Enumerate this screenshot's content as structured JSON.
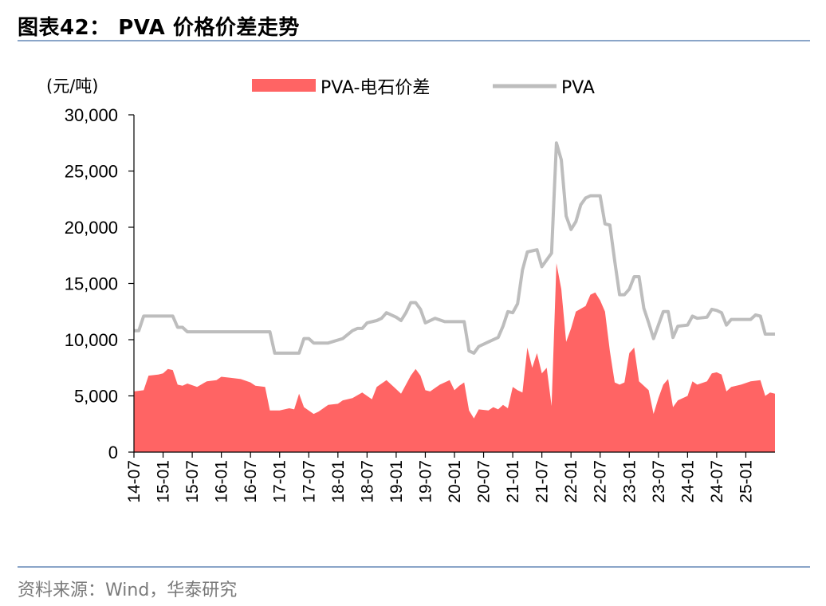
{
  "header": {
    "title": "图表42： PVA 价格价差走势"
  },
  "footer": {
    "source": "资料来源：Wind，华泰研究"
  },
  "colors": {
    "spread_fill": "#ff6464",
    "pva_line": "#bdbdbd",
    "rule": "#8aa5c8"
  },
  "chart_data": {
    "type": "line",
    "unit_label": "(元/吨)",
    "ylim": [
      0,
      30000
    ],
    "yticks": [
      0,
      5000,
      10000,
      15000,
      20000,
      25000,
      30000
    ],
    "ytick_labels": [
      "0",
      "5,000",
      "10,000",
      "15,000",
      "20,000",
      "25,000",
      "30,000"
    ],
    "xlim": [
      "2014-07",
      "2025-07"
    ],
    "xtick_labels": [
      "14-07",
      "15-01",
      "15-07",
      "16-01",
      "16-07",
      "17-01",
      "17-07",
      "18-01",
      "18-07",
      "19-01",
      "19-07",
      "20-01",
      "20-07",
      "21-01",
      "21-07",
      "22-01",
      "22-07",
      "23-01",
      "23-07",
      "24-01",
      "24-07",
      "25-01"
    ],
    "legend": {
      "position": "top"
    },
    "grid": false,
    "series": [
      {
        "name": "PVA-电石价差",
        "type": "area",
        "points": [
          [
            "2014-07",
            5400
          ],
          [
            "2014-09",
            5500
          ],
          [
            "2014-10",
            6800
          ],
          [
            "2014-12",
            6900
          ],
          [
            "2015-01",
            7000
          ],
          [
            "2015-02",
            7400
          ],
          [
            "2015-03",
            7300
          ],
          [
            "2015-04",
            6000
          ],
          [
            "2015-05",
            5900
          ],
          [
            "2015-06",
            6100
          ],
          [
            "2015-08",
            5800
          ],
          [
            "2015-10",
            6300
          ],
          [
            "2015-12",
            6400
          ],
          [
            "2016-01",
            6700
          ],
          [
            "2016-03",
            6600
          ],
          [
            "2016-05",
            6500
          ],
          [
            "2016-07",
            6200
          ],
          [
            "2016-08",
            5900
          ],
          [
            "2016-10",
            5800
          ],
          [
            "2016-11",
            3700
          ],
          [
            "2017-01",
            3700
          ],
          [
            "2017-03",
            3900
          ],
          [
            "2017-04",
            3800
          ],
          [
            "2017-05",
            5200
          ],
          [
            "2017-06",
            4000
          ],
          [
            "2017-08",
            3400
          ],
          [
            "2017-09",
            3600
          ],
          [
            "2017-11",
            4200
          ],
          [
            "2018-01",
            4300
          ],
          [
            "2018-02",
            4600
          ],
          [
            "2018-04",
            4800
          ],
          [
            "2018-06",
            5300
          ],
          [
            "2018-07",
            5000
          ],
          [
            "2018-08",
            4700
          ],
          [
            "2018-09",
            5800
          ],
          [
            "2018-11",
            6400
          ],
          [
            "2019-01",
            5600
          ],
          [
            "2019-02",
            5200
          ],
          [
            "2019-04",
            6800
          ],
          [
            "2019-05",
            7400
          ],
          [
            "2019-06",
            6800
          ],
          [
            "2019-07",
            5500
          ],
          [
            "2019-08",
            5400
          ],
          [
            "2019-10",
            6000
          ],
          [
            "2019-12",
            6400
          ],
          [
            "2020-01",
            5500
          ],
          [
            "2020-02",
            5900
          ],
          [
            "2020-03",
            6200
          ],
          [
            "2020-04",
            3700
          ],
          [
            "2020-05",
            3000
          ],
          [
            "2020-06",
            3800
          ],
          [
            "2020-08",
            3700
          ],
          [
            "2020-09",
            4000
          ],
          [
            "2020-10",
            3800
          ],
          [
            "2020-11",
            4200
          ],
          [
            "2020-12",
            3900
          ],
          [
            "2021-01",
            5800
          ],
          [
            "2021-02",
            5500
          ],
          [
            "2021-03",
            5300
          ],
          [
            "2021-04",
            9300
          ],
          [
            "2021-05",
            7500
          ],
          [
            "2021-06",
            8800
          ],
          [
            "2021-07",
            7000
          ],
          [
            "2021-08",
            7500
          ],
          [
            "2021-09",
            4100
          ],
          [
            "2021-10",
            16800
          ],
          [
            "2021-11",
            14500
          ],
          [
            "2021-12",
            9800
          ],
          [
            "2022-01",
            11000
          ],
          [
            "2022-02",
            12500
          ],
          [
            "2022-04",
            13000
          ],
          [
            "2022-05",
            14000
          ],
          [
            "2022-06",
            14200
          ],
          [
            "2022-07",
            13500
          ],
          [
            "2022-08",
            12500
          ],
          [
            "2022-09",
            9000
          ],
          [
            "2022-10",
            6200
          ],
          [
            "2022-11",
            6000
          ],
          [
            "2022-12",
            6200
          ],
          [
            "2023-01",
            8800
          ],
          [
            "2023-02",
            9300
          ],
          [
            "2023-03",
            6300
          ],
          [
            "2023-05",
            5500
          ],
          [
            "2023-06",
            3400
          ],
          [
            "2023-07",
            4800
          ],
          [
            "2023-08",
            6000
          ],
          [
            "2023-09",
            6500
          ],
          [
            "2023-10",
            4000
          ],
          [
            "2023-11",
            4600
          ],
          [
            "2024-01",
            5000
          ],
          [
            "2024-02",
            6300
          ],
          [
            "2024-03",
            6000
          ],
          [
            "2024-05",
            6300
          ],
          [
            "2024-06",
            7000
          ],
          [
            "2024-07",
            7100
          ],
          [
            "2024-08",
            6900
          ],
          [
            "2024-09",
            5400
          ],
          [
            "2024-10",
            5800
          ],
          [
            "2024-12",
            6000
          ],
          [
            "2025-02",
            6300
          ],
          [
            "2025-04",
            6400
          ],
          [
            "2025-05",
            5000
          ],
          [
            "2025-06",
            5300
          ],
          [
            "2025-07",
            5200
          ]
        ]
      },
      {
        "name": "PVA",
        "type": "line",
        "points": [
          [
            "2014-07",
            10800
          ],
          [
            "2014-08",
            10800
          ],
          [
            "2014-09",
            12100
          ],
          [
            "2015-03",
            12100
          ],
          [
            "2015-04",
            11100
          ],
          [
            "2015-05",
            11100
          ],
          [
            "2015-06",
            10700
          ],
          [
            "2016-11",
            10700
          ],
          [
            "2016-12",
            8800
          ],
          [
            "2017-05",
            8800
          ],
          [
            "2017-06",
            10100
          ],
          [
            "2017-07",
            10100
          ],
          [
            "2017-08",
            9700
          ],
          [
            "2017-11",
            9700
          ],
          [
            "2018-02",
            10100
          ],
          [
            "2018-04",
            10800
          ],
          [
            "2018-05",
            11000
          ],
          [
            "2018-06",
            11000
          ],
          [
            "2018-07",
            11500
          ],
          [
            "2018-09",
            11700
          ],
          [
            "2018-10",
            11900
          ],
          [
            "2018-11",
            12400
          ],
          [
            "2019-01",
            12000
          ],
          [
            "2019-02",
            11700
          ],
          [
            "2019-03",
            12400
          ],
          [
            "2019-04",
            13300
          ],
          [
            "2019-05",
            13300
          ],
          [
            "2019-06",
            12700
          ],
          [
            "2019-07",
            11500
          ],
          [
            "2019-09",
            11900
          ],
          [
            "2019-11",
            11600
          ],
          [
            "2020-03",
            11600
          ],
          [
            "2020-04",
            9000
          ],
          [
            "2020-05",
            8800
          ],
          [
            "2020-06",
            9400
          ],
          [
            "2020-08",
            9800
          ],
          [
            "2020-10",
            10200
          ],
          [
            "2020-11",
            11200
          ],
          [
            "2020-12",
            12500
          ],
          [
            "2021-01",
            12400
          ],
          [
            "2021-02",
            13200
          ],
          [
            "2021-03",
            16200
          ],
          [
            "2021-04",
            17800
          ],
          [
            "2021-06",
            18000
          ],
          [
            "2021-07",
            16500
          ],
          [
            "2021-09",
            17700
          ],
          [
            "2021-10",
            27500
          ],
          [
            "2021-11",
            26000
          ],
          [
            "2021-12",
            21000
          ],
          [
            "2022-01",
            19800
          ],
          [
            "2022-02",
            20500
          ],
          [
            "2022-03",
            22000
          ],
          [
            "2022-04",
            22600
          ],
          [
            "2022-05",
            22800
          ],
          [
            "2022-07",
            22800
          ],
          [
            "2022-08",
            20300
          ],
          [
            "2022-09",
            20200
          ],
          [
            "2022-10",
            17000
          ],
          [
            "2022-11",
            14000
          ],
          [
            "2022-12",
            14000
          ],
          [
            "2023-01",
            14500
          ],
          [
            "2023-02",
            15600
          ],
          [
            "2023-03",
            15600
          ],
          [
            "2023-04",
            12800
          ],
          [
            "2023-05",
            11500
          ],
          [
            "2023-06",
            10100
          ],
          [
            "2023-07",
            11300
          ],
          [
            "2023-08",
            12500
          ],
          [
            "2023-09",
            12500
          ],
          [
            "2023-10",
            10200
          ],
          [
            "2023-11",
            11200
          ],
          [
            "2024-01",
            11300
          ],
          [
            "2024-02",
            12100
          ],
          [
            "2024-03",
            11900
          ],
          [
            "2024-05",
            12000
          ],
          [
            "2024-06",
            12700
          ],
          [
            "2024-07",
            12600
          ],
          [
            "2024-08",
            12400
          ],
          [
            "2024-09",
            11300
          ],
          [
            "2024-10",
            11800
          ],
          [
            "2025-02",
            11800
          ],
          [
            "2025-03",
            12200
          ],
          [
            "2025-04",
            12100
          ],
          [
            "2025-05",
            10500
          ],
          [
            "2025-07",
            10500
          ]
        ]
      }
    ]
  }
}
